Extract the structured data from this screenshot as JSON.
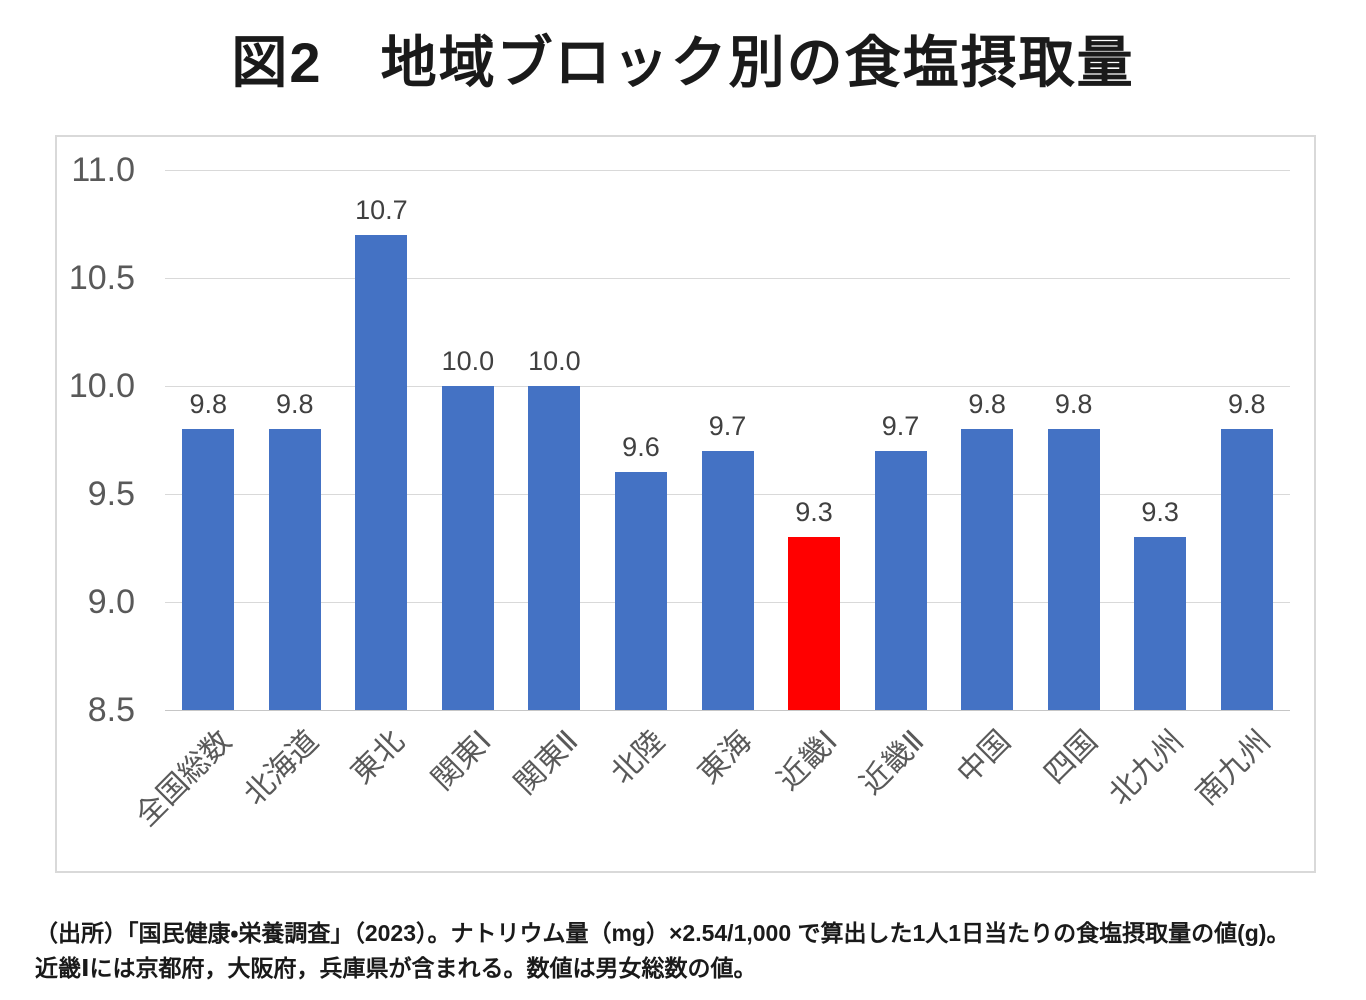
{
  "title": "図2　地域ブロック別の食塩摂取量",
  "chart_data": {
    "type": "bar",
    "title": "図2　地域ブロック別の食塩摂取量",
    "categories": [
      "全国総数",
      "北海道",
      "東北",
      "関東Ⅰ",
      "関東Ⅱ",
      "北陸",
      "東海",
      "近畿Ⅰ",
      "近畿Ⅱ",
      "中国",
      "四国",
      "北九州",
      "南九州"
    ],
    "values": [
      9.8,
      9.8,
      10.7,
      10.0,
      10.0,
      9.6,
      9.7,
      9.3,
      9.7,
      9.8,
      9.8,
      9.3,
      9.8
    ],
    "data_labels": [
      "9.8",
      "9.8",
      "10.7",
      "10.0",
      "10.0",
      "9.6",
      "9.7",
      "9.3",
      "9.7",
      "9.8",
      "9.8",
      "9.3",
      "9.8"
    ],
    "highlight_index": 7,
    "bar_color": "#4472c4",
    "highlight_color": "#ff0000",
    "xlabel": "",
    "ylabel": "",
    "ylim": [
      8.5,
      11.0
    ],
    "ytick_step": 0.5,
    "ytick_labels": [
      "11.0",
      "10.5",
      "10.0",
      "9.5",
      "9.0",
      "8.5"
    ],
    "grid": true,
    "legend_position": "none",
    "unit": "g"
  },
  "colors": {
    "gridline": "#d9d9d9",
    "axis_text": "#595959",
    "value_text": "#404040",
    "chart_border": "#d9d9d9"
  },
  "source_note": {
    "line1": "（出所）「国民健康・栄養調査」（2023）。ナトリウム量（mg）×2.54/1,000 で算出した1人1日当たりの食塩摂取量の値(g)。",
    "line2": "近畿Ⅰには京都府，大阪府，兵庫県が含まれる。数値は男女総数の値。"
  }
}
